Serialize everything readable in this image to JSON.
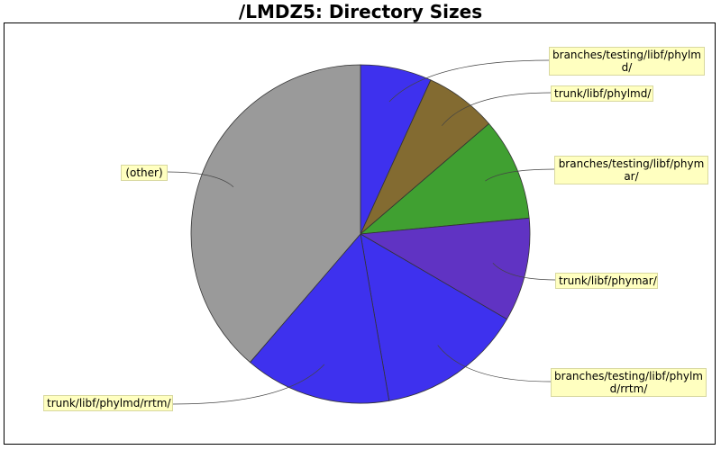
{
  "chart_data": {
    "type": "pie",
    "title": "/LMDZ5: Directory Sizes",
    "slices": [
      {
        "label": "branches/testing/libf/phylmd/",
        "value": 6.8,
        "color": "#3e31ee"
      },
      {
        "label": "trunk/libf/phylmd/",
        "value": 6.9,
        "color": "#836b31"
      },
      {
        "label": "branches/testing/libf/phymar/",
        "value": 9.8,
        "color": "#40a031"
      },
      {
        "label": "trunk/libf/phymar/",
        "value": 9.9,
        "color": "#6033c3"
      },
      {
        "label": "branches/testing/libf/phylmd/rrtm/",
        "value": 13.9,
        "color": "#3e31ee"
      },
      {
        "label": "trunk/libf/phylmd/rrtm/",
        "value": 14.0,
        "color": "#3e31ee"
      },
      {
        "label": "(other)",
        "value": 38.7,
        "color": "#9a9a9a"
      }
    ]
  }
}
